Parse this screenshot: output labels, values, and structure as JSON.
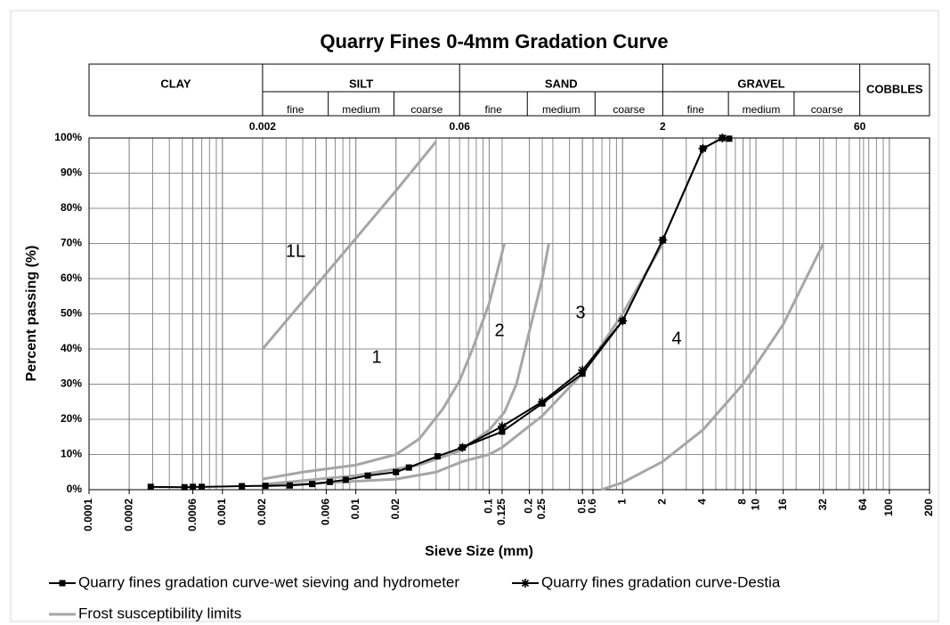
{
  "chart_data": {
    "type": "line",
    "title": "Quarry Fines 0-4mm Gradation Curve",
    "xlabel": "Sieve Size (mm)",
    "ylabel": "Percent passing (%)",
    "xscale": "log",
    "xlim": [
      0.0001,
      200
    ],
    "ylim": [
      0,
      100
    ],
    "xticks": [
      0.0001,
      0.0002,
      0.0006,
      0.001,
      0.002,
      0.006,
      0.01,
      0.02,
      0.1,
      0.125,
      0.2,
      0.25,
      0.5,
      0.6,
      1,
      2,
      4,
      8,
      10,
      16,
      32,
      64,
      100,
      200
    ],
    "yticks": [
      {
        "value": 0,
        "label": "0%"
      },
      {
        "value": 10,
        "label": "10%"
      },
      {
        "value": 20,
        "label": "20%"
      },
      {
        "value": 30,
        "label": "30%"
      },
      {
        "value": 40,
        "label": "40%"
      },
      {
        "value": 50,
        "label": "50%"
      },
      {
        "value": 60,
        "label": "60%"
      },
      {
        "value": 70,
        "label": "70%"
      },
      {
        "value": 80,
        "label": "80%"
      },
      {
        "value": 90,
        "label": "90%"
      },
      {
        "value": 100,
        "label": "100%"
      }
    ],
    "grid": true,
    "soil_classes": {
      "names": [
        "CLAY",
        "SILT",
        "SAND",
        "GRAVEL",
        "COBBLES"
      ],
      "boundaries": [
        0.002,
        0.06,
        2,
        60
      ],
      "subclasses": [
        "fine",
        "medium",
        "coarse"
      ]
    },
    "annotations": [
      "1L",
      "1",
      "2",
      "3",
      "4"
    ],
    "series": [
      {
        "name": "Quarry fines gradation curve-wet sieving and hydrometer",
        "color": "#000000",
        "marker": "square",
        "x": [
          0.00029,
          0.00052,
          0.0006,
          0.0007,
          0.0014,
          0.0021,
          0.0032,
          0.0047,
          0.0064,
          0.0084,
          0.0123,
          0.02,
          0.025,
          0.041,
          0.063,
          0.125,
          0.25,
          0.5,
          1,
          2,
          4,
          5.6,
          6.3
        ],
        "values": [
          0.8,
          0.7,
          0.8,
          0.8,
          1.0,
          1.1,
          1.2,
          1.6,
          2.2,
          2.8,
          4,
          5,
          6.3,
          9.5,
          12,
          16.5,
          24.5,
          33,
          48,
          71,
          97,
          100,
          99.8
        ]
      },
      {
        "name": "Quarry fines gradation curve-Destia",
        "color": "#000000",
        "marker": "star",
        "x": [
          0.063,
          0.125,
          0.25,
          0.5,
          1,
          2,
          4,
          5.6
        ],
        "values": [
          12,
          18,
          25,
          34,
          48,
          71,
          97,
          100
        ]
      },
      {
        "name": "Frost susceptibility limits",
        "color": "#a6a6a6",
        "marker": null,
        "x": [
          0.002,
          0.02,
          0.04,
          null,
          0.002,
          0.004,
          0.01,
          0.02,
          0.03,
          0.045,
          0.06,
          0.075,
          0.1,
          0.13,
          null,
          0.002,
          0.01,
          0.03,
          0.06,
          0.1,
          0.13,
          0.16,
          0.2,
          0.25,
          0.28,
          null,
          0.002,
          0.02,
          0.04,
          0.063,
          0.1,
          0.125,
          0.25,
          0.5,
          1,
          2,
          null,
          0.69,
          1,
          2,
          4,
          8,
          16,
          32
        ],
        "values": [
          40,
          85,
          99,
          null,
          3,
          5,
          7,
          10,
          14.5,
          23,
          31,
          40,
          53,
          70,
          null,
          1.5,
          4,
          7,
          11,
          17,
          22,
          30,
          45,
          60,
          70,
          null,
          1,
          3,
          5,
          8,
          10,
          12,
          21,
          33,
          50,
          70,
          null,
          0,
          2,
          8,
          17,
          30,
          47,
          70
        ]
      }
    ]
  }
}
